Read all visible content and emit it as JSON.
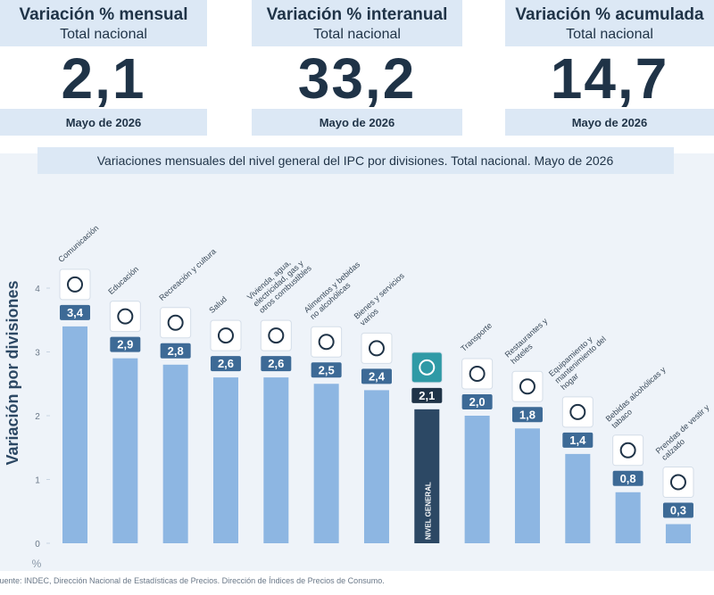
{
  "cards": [
    {
      "title": "Variación % mensual",
      "subtitle": "Total nacional",
      "value": "2,1",
      "period": "Mayo de 2026"
    },
    {
      "title": "Variación % interanual",
      "subtitle": "Total nacional",
      "value": "33,2",
      "period": "Mayo de 2026"
    },
    {
      "title": "Variación % acumulada",
      "subtitle": "Total nacional",
      "value": "14,7",
      "period": "Mayo de 2026"
    }
  ],
  "chart_data": {
    "type": "bar",
    "title": "Variaciones mensuales del nivel general del IPC por divisiones. Total nacional. Mayo de 2026",
    "y_label": "Variación por divisiones",
    "y_unit": "%",
    "categories": [
      "Comunicación",
      "Educación",
      "Recreación y cultura",
      "Salud",
      "Vivienda, agua, electricidad, gas y otros combustibles",
      "Alimentos y bebidas no alcohólicas",
      "Bienes y servicios varios",
      "NIVEL GENERAL",
      "Transporte",
      "Restaurantes y hoteles",
      "Equipamiento y mantenimiento del hogar",
      "Bebidas alcohólicas y tabaco",
      "Prendas de vestir y calzado"
    ],
    "values": [
      3.4,
      2.9,
      2.8,
      2.6,
      2.6,
      2.5,
      2.4,
      2.1,
      2.0,
      1.8,
      1.4,
      0.8,
      0.3
    ],
    "value_labels": [
      "3,4",
      "2,9",
      "2,8",
      "2,6",
      "2,6",
      "2,5",
      "2,4",
      "2,1",
      "2,0",
      "1,8",
      "1,4",
      "0,8",
      "0,3"
    ],
    "colors": [
      "#8db6e2",
      "#8db6e2",
      "#8db6e2",
      "#8db6e2",
      "#8db6e2",
      "#8db6e2",
      "#8db6e2",
      "#2c4864",
      "#8db6e2",
      "#8db6e2",
      "#8db6e2",
      "#8db6e2",
      "#8db6e2"
    ],
    "ylim": [
      0,
      4
    ],
    "yticks": [
      0,
      1,
      2,
      3,
      4
    ]
  },
  "source": "Fuente: INDEC, Dirección Nacional de Estadísticas de Precios. Dirección de Índices de Precios de Consumo."
}
